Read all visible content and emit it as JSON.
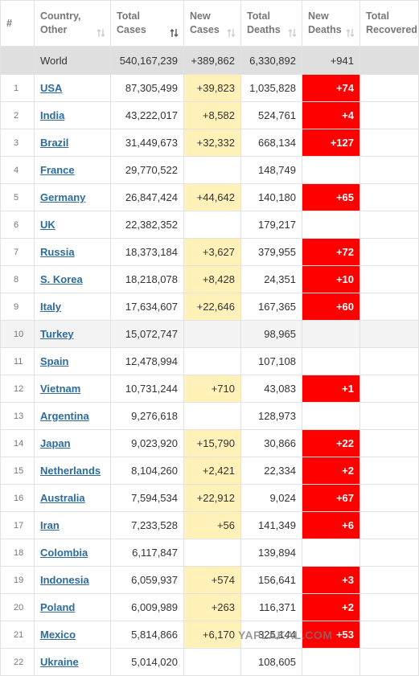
{
  "header": {
    "columns": [
      [
        "#"
      ],
      [
        "Country,",
        "Other"
      ],
      [
        "Total",
        "Cases"
      ],
      [
        "New",
        "Cases"
      ],
      [
        "Total",
        "Deaths"
      ],
      [
        "New",
        "Deaths"
      ],
      [
        "Total",
        "Recovered"
      ]
    ]
  },
  "world": [
    "World",
    "540,167,239",
    "+389,862",
    "6,330,892",
    "+941"
  ],
  "rows": [
    [
      "1",
      "USA",
      "87,305,499",
      "+39,823",
      "1,035,828",
      "+74"
    ],
    [
      "2",
      "India",
      "43,222,017",
      "+8,582",
      "524,761",
      "+4"
    ],
    [
      "3",
      "Brazil",
      "31,449,673",
      "+32,332",
      "668,134",
      "+127"
    ],
    [
      "4",
      "France",
      "29,770,522",
      null,
      "148,749",
      null
    ],
    [
      "5",
      "Germany",
      "26,847,424",
      "+44,642",
      "140,180",
      "+65"
    ],
    [
      "6",
      "UK",
      "22,382,352",
      null,
      "179,217",
      null
    ],
    [
      "7",
      "Russia",
      "18,373,184",
      "+3,627",
      "379,955",
      "+72"
    ],
    [
      "8",
      "S. Korea",
      "18,218,078",
      "+8,428",
      "24,351",
      "+10"
    ],
    [
      "9",
      "Italy",
      "17,634,607",
      "+22,646",
      "167,365",
      "+60"
    ],
    [
      "10",
      "Turkey",
      "15,072,747",
      null,
      "98,965",
      null
    ],
    [
      "11",
      "Spain",
      "12,478,994",
      null,
      "107,108",
      null
    ],
    [
      "12",
      "Vietnam",
      "10,731,244",
      "+710",
      "43,083",
      "+1"
    ],
    [
      "13",
      "Argentina",
      "9,276,618",
      null,
      "128,973",
      null
    ],
    [
      "14",
      "Japan",
      "9,023,920",
      "+15,790",
      "30,866",
      "+22"
    ],
    [
      "15",
      "Netherlands",
      "8,104,260",
      "+2,421",
      "22,334",
      "+2"
    ],
    [
      "16",
      "Australia",
      "7,594,534",
      "+22,912",
      "9,024",
      "+67"
    ],
    [
      "17",
      "Iran",
      "7,233,528",
      "+56",
      "141,349",
      "+6"
    ],
    [
      "18",
      "Colombia",
      "6,117,847",
      null,
      "139,894",
      null
    ],
    [
      "19",
      "Indonesia",
      "6,059,937",
      "+574",
      "156,641",
      "+3"
    ],
    [
      "20",
      "Poland",
      "6,009,989",
      "+263",
      "116,371",
      "+2"
    ],
    [
      "21",
      "Mexico",
      "5,814,866",
      "+6,170",
      "325,144",
      "+53"
    ],
    [
      "22",
      "Ukraine",
      "5,014,020",
      null,
      "108,605",
      null
    ]
  ],
  "watermark": "YAPLAKAL.COM"
}
